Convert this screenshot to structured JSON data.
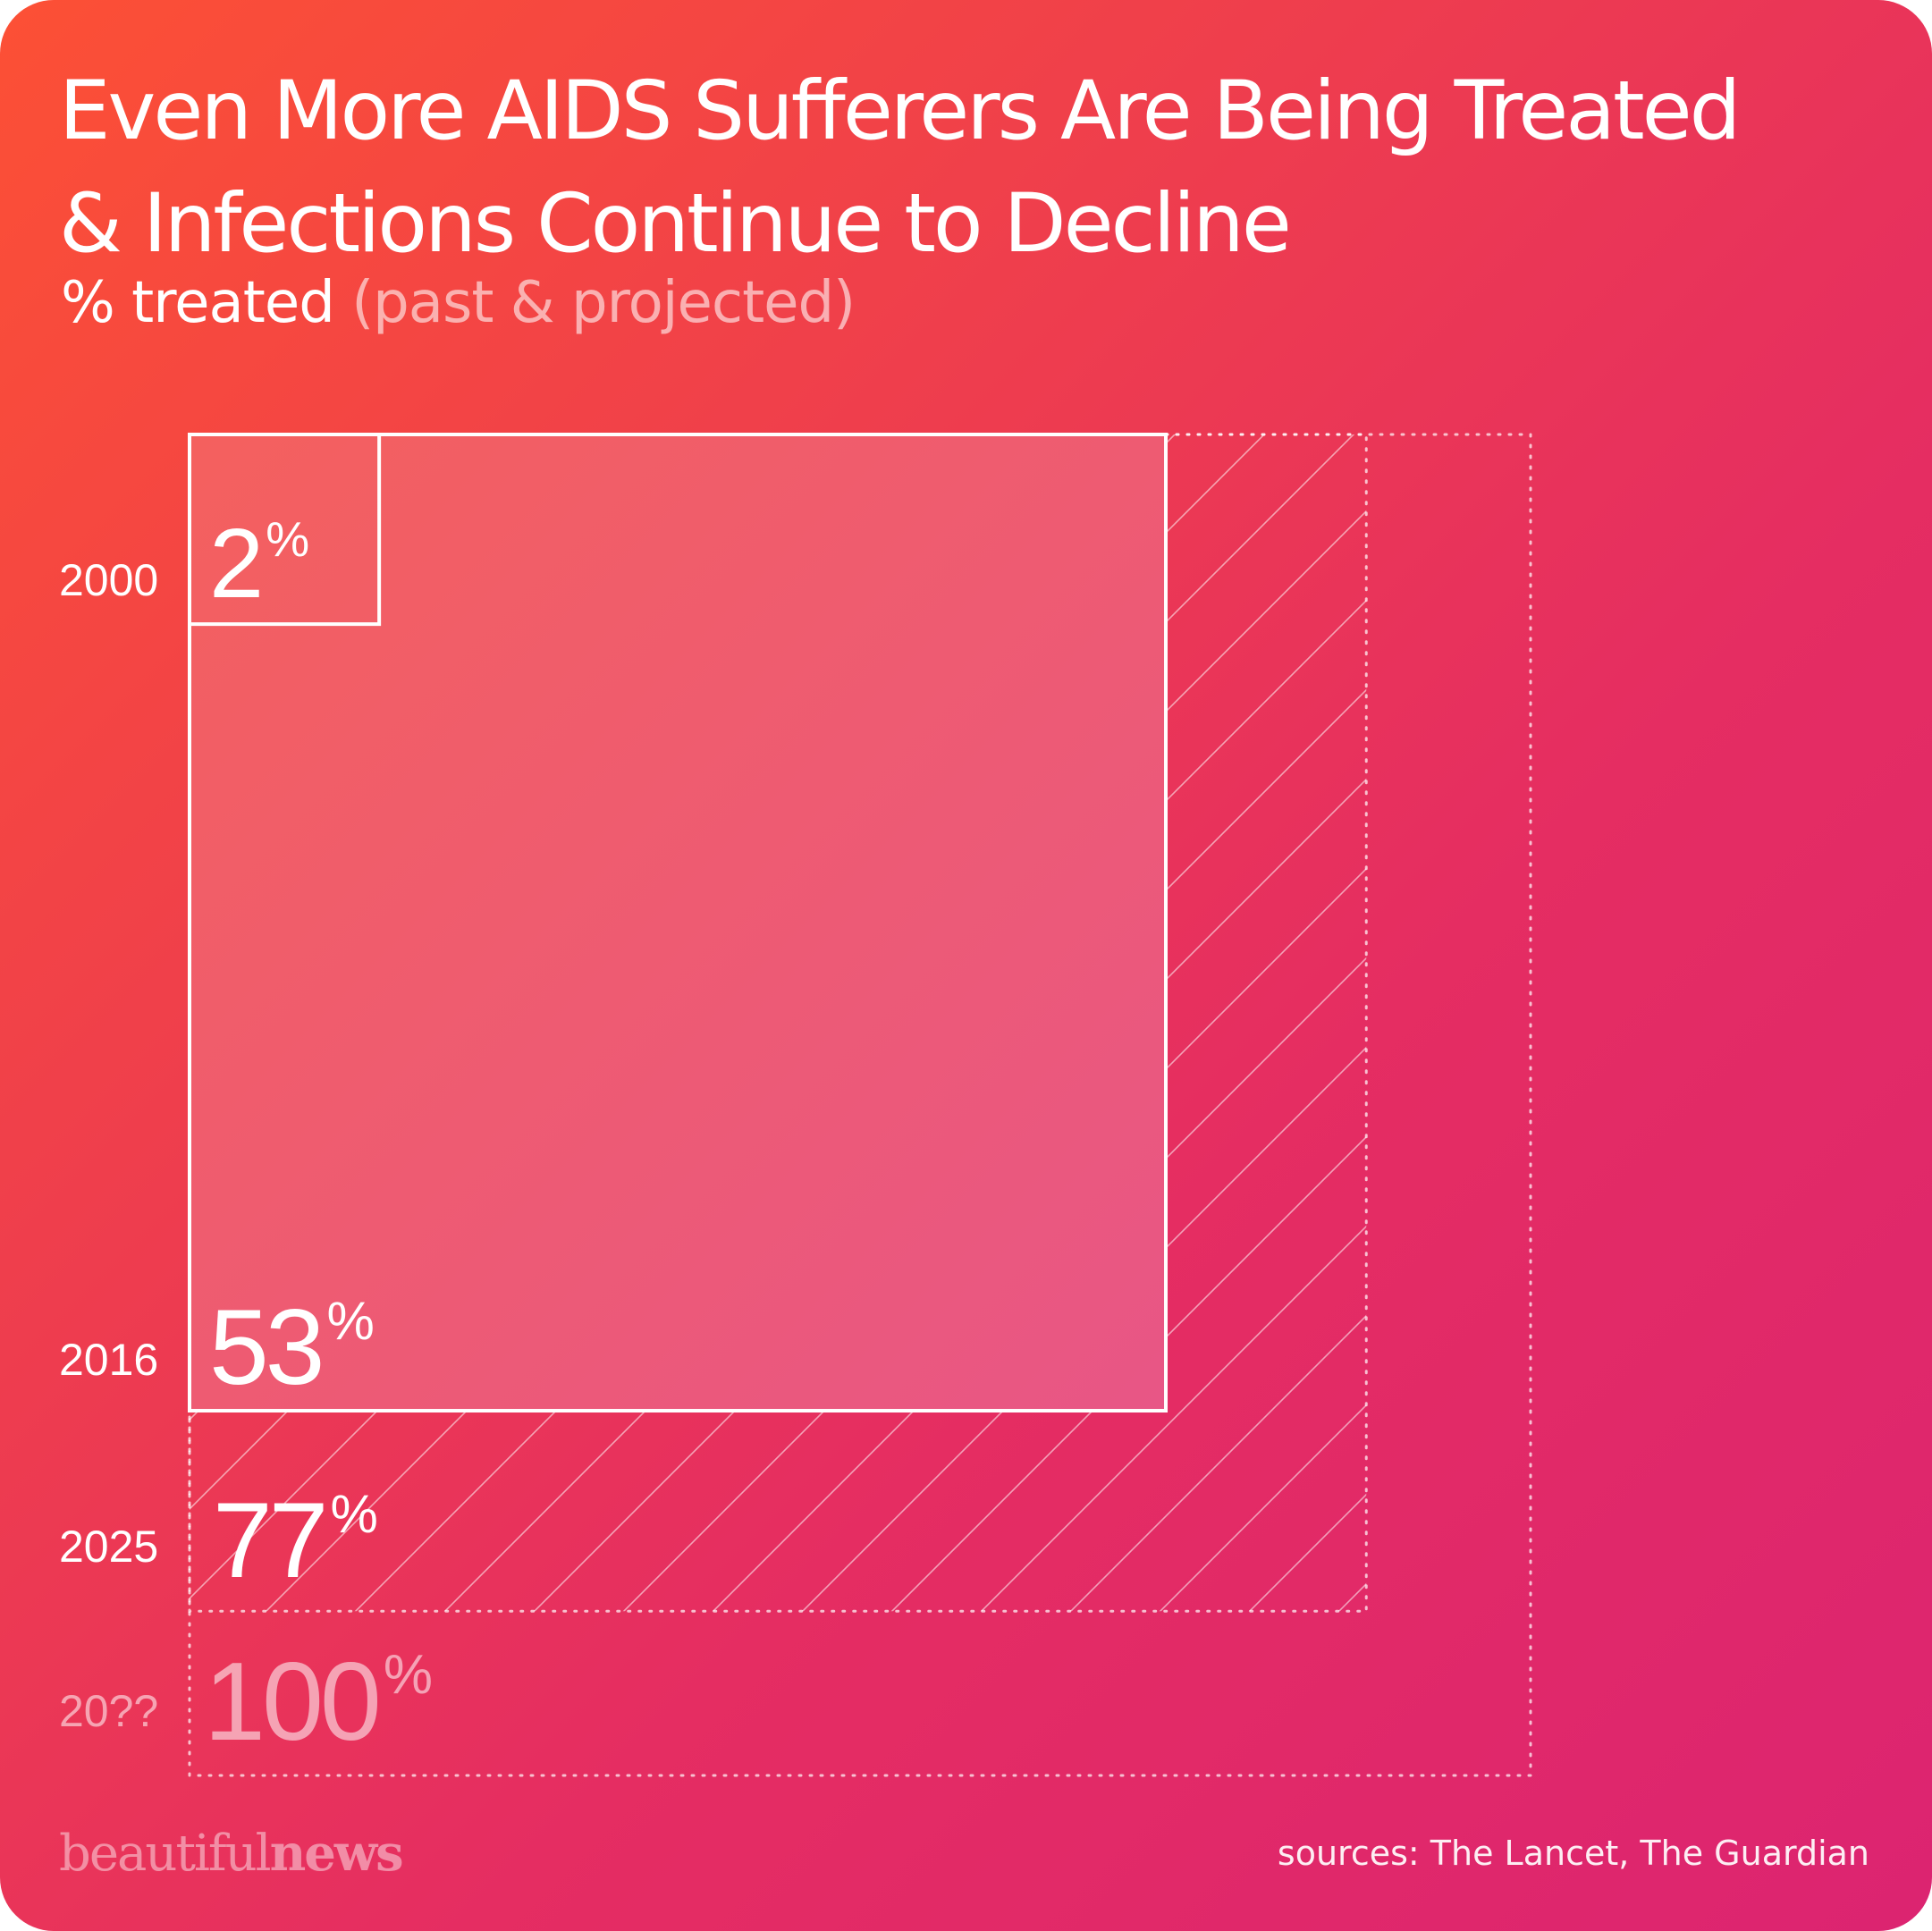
{
  "title": {
    "line1": "Even More AIDS Sufferers Are Being Treated",
    "line2": "& Infections Continue to Decline"
  },
  "subtitle": {
    "main": "% treated",
    "qualifier": "(past & projected)"
  },
  "chart_data": {
    "type": "area",
    "title": "Even More AIDS Sufferers Are Being Treated & Infections Continue to Decline",
    "subtitle": "% treated (past & projected)",
    "encoding": "nested squares; square area proportional to percent treated",
    "unit": "%",
    "points": [
      {
        "year": "2000",
        "value": 2,
        "label": "2",
        "status": "past"
      },
      {
        "year": "2016",
        "value": 53,
        "label": "53",
        "status": "past"
      },
      {
        "year": "2025",
        "value": 77,
        "label": "77",
        "status": "projected"
      },
      {
        "year": "20??",
        "value": 100,
        "label": "100",
        "status": "goal"
      }
    ]
  },
  "colors": {
    "gradient_start": "#fc5035",
    "gradient_end": "#dc2471",
    "text": "#ffffff"
  },
  "footer": {
    "brand_light": "beautiful",
    "brand_bold": "news",
    "sources": "sources: The Lancet, The Guardian"
  }
}
